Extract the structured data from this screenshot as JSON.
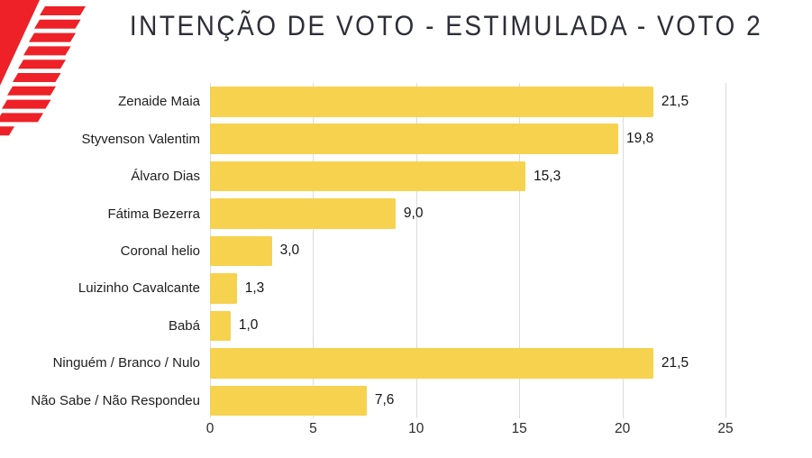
{
  "title": "INTENÇÃO DE VOTO - ESTIMULADA - VOTO 2",
  "logo": {
    "icon": "red-stripes-logo",
    "color": "#ed2127"
  },
  "colors": {
    "bar": "#f7d24f",
    "gridline": "#dbdbdb",
    "title_text": "#2e2e38",
    "label_text": "#202020",
    "logo_red": "#ed2127"
  },
  "chart_data": {
    "type": "bar",
    "orientation": "horizontal",
    "title": "INTENÇÃO DE VOTO - ESTIMULADA - VOTO 2",
    "categories": [
      "Zenaide Maia",
      "Styvenson Valentim",
      "Álvaro Dias",
      "Fátima Bezerra",
      "Coronal helio",
      "Luizinho Cavalcante",
      "Babá",
      "Ninguém / Branco / Nulo",
      "Não Sabe / Não Respondeu"
    ],
    "values": [
      21.5,
      19.8,
      15.3,
      9.0,
      3.0,
      1.3,
      1.0,
      21.5,
      7.6
    ],
    "value_labels": [
      "21,5",
      "19,8",
      "15,3",
      "9,0",
      "3,0",
      "1,3",
      "1,0",
      "21,5",
      "7,6"
    ],
    "xlabel": "",
    "ylabel": "",
    "xlim": [
      0,
      25
    ],
    "x_ticks": [
      0,
      5,
      10,
      15,
      20,
      25
    ],
    "bar_color": "#f7d24f",
    "grid": true,
    "legend": false
  }
}
